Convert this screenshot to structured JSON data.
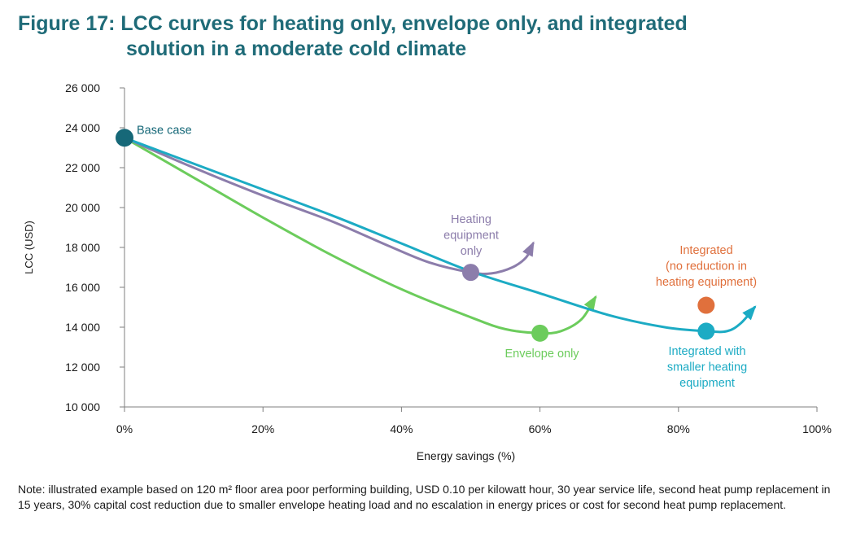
{
  "figure": {
    "title_line1": "Figure 17: LCC curves for heating only, envelope only, and integrated",
    "title_line2": "solution in a moderate cold climate",
    "note": "Note: illustrated example based on 120 m² floor area poor performing building, USD 0.10 per kilowatt hour, 30 year service life, second heat pump replacement in 15 years, 30% capital cost reduction due to smaller envelope heating load and no escalation in energy prices or cost for second heat pump replacement."
  },
  "chart_data": {
    "type": "line",
    "title": "",
    "xlabel": "Energy savings (%)",
    "ylabel": "LCC (USD)",
    "xlim": [
      0,
      100
    ],
    "ylim": [
      10000,
      26000
    ],
    "xticks": [
      0,
      20,
      40,
      60,
      80,
      100
    ],
    "xtick_labels": [
      "0%",
      "20%",
      "40%",
      "60%",
      "80%",
      "100%"
    ],
    "yticks": [
      10000,
      12000,
      14000,
      16000,
      18000,
      20000,
      22000,
      24000,
      26000
    ],
    "ytick_labels": [
      "10 000",
      "12 000",
      "14 000",
      "16 000",
      "18 000",
      "20 000",
      "22 000",
      "24 000",
      "26 000"
    ],
    "grid": false,
    "colors": {
      "base": "#166878",
      "heating": "#8c7dab",
      "envelope": "#6ccc5c",
      "integrated": "#1cabc4",
      "integrated_no_reduction": "#e0703c",
      "axis": "#7f7f7f"
    },
    "series": [
      {
        "key": "heating",
        "label_lines": [
          "Heating",
          "equipment",
          "only"
        ],
        "points": [
          [
            0,
            23500
          ],
          [
            10,
            22000
          ],
          [
            20,
            20600
          ],
          [
            30,
            19300
          ],
          [
            38,
            18100
          ],
          [
            44,
            17250
          ],
          [
            50,
            16750
          ],
          [
            53,
            16700
          ],
          [
            56,
            17000
          ],
          [
            58,
            17500
          ],
          [
            59,
            18200
          ]
        ],
        "marker": [
          50,
          16750
        ]
      },
      {
        "key": "envelope",
        "label_lines": [
          "Envelope only"
        ],
        "points": [
          [
            0,
            23500
          ],
          [
            10,
            21500
          ],
          [
            20,
            19500
          ],
          [
            30,
            17600
          ],
          [
            40,
            15900
          ],
          [
            50,
            14500
          ],
          [
            55,
            13900
          ],
          [
            60,
            13700
          ],
          [
            63,
            13800
          ],
          [
            66,
            14400
          ],
          [
            68,
            15500
          ]
        ],
        "marker": [
          60,
          13700
        ]
      },
      {
        "key": "integrated",
        "label_lines": [
          "Integrated with",
          "smaller heating",
          "equipment"
        ],
        "points": [
          [
            0,
            23500
          ],
          [
            10,
            22200
          ],
          [
            20,
            20900
          ],
          [
            30,
            19600
          ],
          [
            40,
            18200
          ],
          [
            50,
            16800
          ],
          [
            60,
            15700
          ],
          [
            70,
            14600
          ],
          [
            78,
            14000
          ],
          [
            84,
            13800
          ],
          [
            87,
            13800
          ],
          [
            89,
            14200
          ],
          [
            91,
            15000
          ]
        ],
        "marker": [
          84,
          13800
        ]
      }
    ],
    "points": [
      {
        "key": "base",
        "label": "Base case",
        "x": 0,
        "y": 23500
      },
      {
        "key": "integrated_no_reduction",
        "label_lines": [
          "Integrated",
          "(no reduction in",
          "heating equipment)"
        ],
        "x": 84,
        "y": 15100
      }
    ]
  }
}
